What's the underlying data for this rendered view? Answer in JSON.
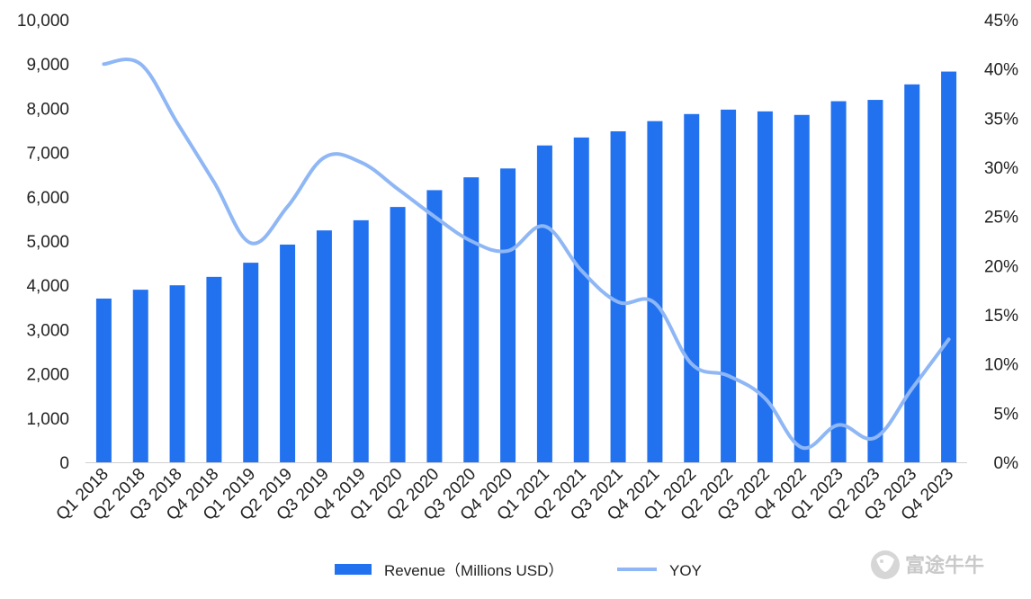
{
  "chart_data": {
    "type": "bar",
    "categories": [
      "Q1 2018",
      "Q2 2018",
      "Q3 2018",
      "Q4 2018",
      "Q1 2019",
      "Q2 2019",
      "Q3 2019",
      "Q4 2019",
      "Q1 2020",
      "Q2 2020",
      "Q3 2020",
      "Q4 2020",
      "Q1 2021",
      "Q2 2021",
      "Q3 2021",
      "Q4 2021",
      "Q1 2022",
      "Q2 2022",
      "Q3 2022",
      "Q4 2022",
      "Q1 2023",
      "Q2 2023",
      "Q3 2023",
      "Q4 2023"
    ],
    "series": [
      {
        "name": "Revenue（Millions USD）",
        "type": "bar",
        "axis": "left",
        "color": "#2272F0",
        "values": [
          3700,
          3900,
          4000,
          4190,
          4510,
          4920,
          5240,
          5470,
          5770,
          6150,
          6440,
          6640,
          7160,
          7340,
          7480,
          7710,
          7870,
          7970,
          7930,
          7850,
          8160,
          8190,
          8540,
          8830
        ]
      },
      {
        "name": "YOY",
        "type": "line",
        "axis": "right",
        "color": "#8FB7F5",
        "values": [
          40.5,
          40.5,
          34.5,
          28.5,
          22.3,
          26.0,
          31.0,
          30.5,
          27.8,
          25.0,
          22.5,
          21.5,
          24.0,
          19.5,
          16.3,
          16.2,
          10.0,
          8.8,
          6.5,
          1.5,
          3.8,
          2.5,
          7.5,
          12.5
        ]
      }
    ],
    "y_left": {
      "ticks": [
        "0",
        "1,000",
        "2,000",
        "3,000",
        "4,000",
        "5,000",
        "6,000",
        "7,000",
        "8,000",
        "9,000",
        "10,000"
      ],
      "ylim": [
        0,
        10000
      ]
    },
    "y_right": {
      "ticks": [
        "0%",
        "5%",
        "10%",
        "15%",
        "20%",
        "25%",
        "30%",
        "35%",
        "40%",
        "45%"
      ],
      "ylim": [
        0,
        45
      ]
    },
    "grid": false,
    "legend_position": "bottom-center"
  },
  "watermark": {
    "text": "富途牛牛",
    "icon": "futu-bull-logo-icon"
  }
}
